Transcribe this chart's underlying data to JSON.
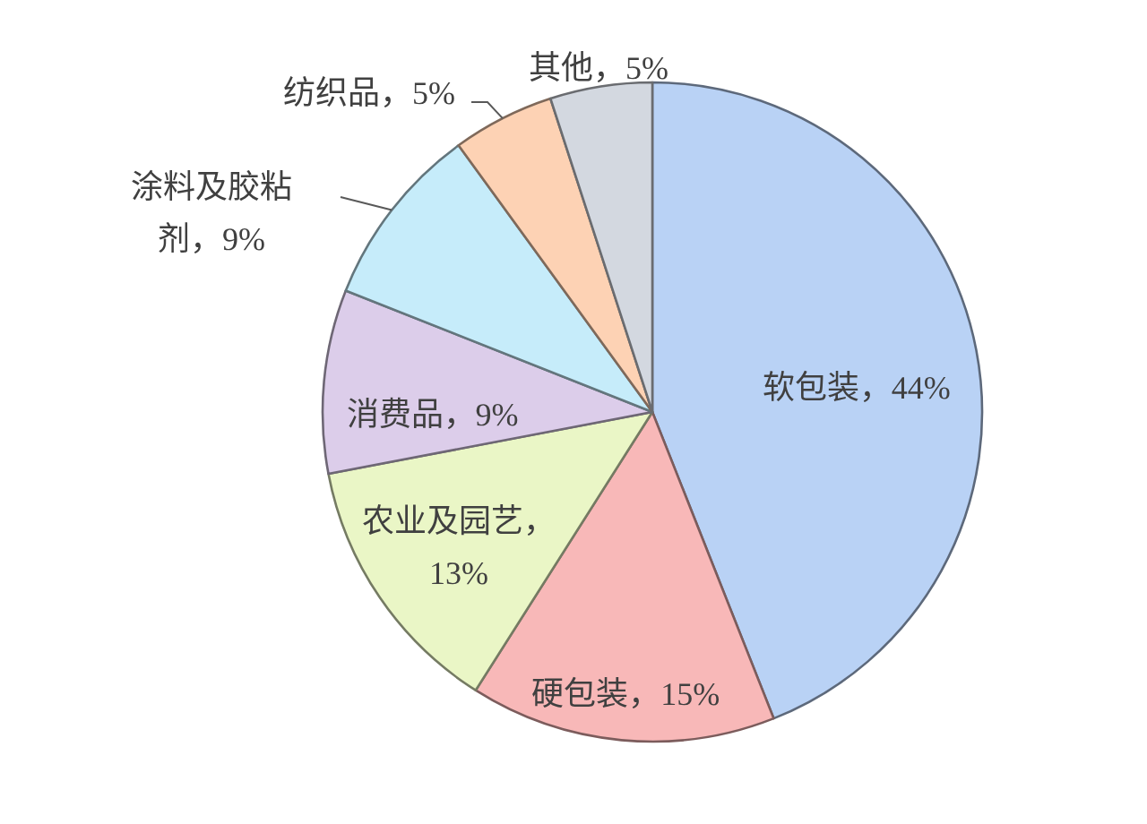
{
  "chart_data": {
    "type": "pie",
    "categories": [
      "软包装",
      "硬包装",
      "农业及园艺",
      "消费品",
      "涂料及胶粘剂",
      "纺织品",
      "其他"
    ],
    "values": [
      44,
      15,
      13,
      9,
      9,
      5,
      5
    ],
    "value_labels": [
      "，44%",
      "，15%",
      "，13%",
      "，9%",
      "，9%",
      "，5%",
      "，5%"
    ],
    "colors": [
      "#b9d2f5",
      "#f8b8b8",
      "#eaf6c6",
      "#dccdea",
      "#c6ecfa",
      "#fdd2b4",
      "#d3d8e0"
    ]
  }
}
